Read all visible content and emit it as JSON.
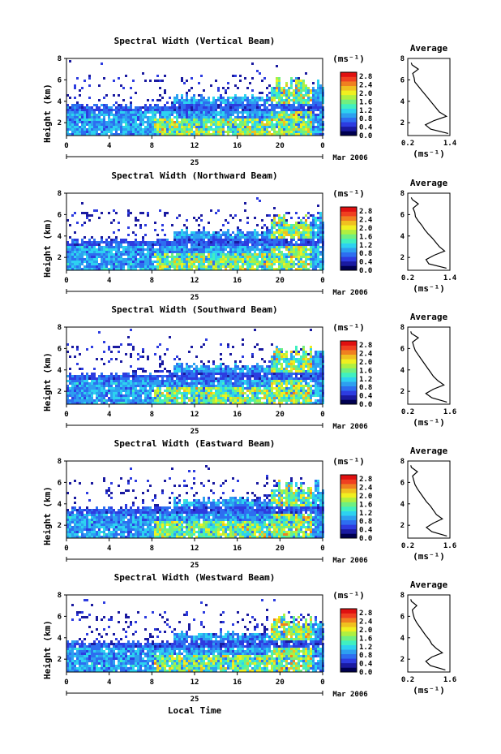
{
  "figure": {
    "xlabel": "Local Time",
    "date_label": "25",
    "month_label": "Mar 2006",
    "colorbar_unit": "(ms⁻¹)",
    "profile_title": "Average",
    "profile_unit": "(ms⁻¹)"
  },
  "colors": {
    "scale": [
      "#000050",
      "#1a1aa0",
      "#2d3ce0",
      "#2d6ef0",
      "#2da0f0",
      "#2dd2f0",
      "#40f0c0",
      "#70f080",
      "#b0f040",
      "#f0f020",
      "#f0c020",
      "#f08020",
      "#f04020",
      "#e01010"
    ],
    "outline": "#000000"
  },
  "chart_data": [
    {
      "type": "heatmap",
      "title": "Spectral Width (Vertical Beam)",
      "ylabel": "Height (km)",
      "x_ticks": [
        "0",
        "4",
        "8",
        "12",
        "16",
        "20",
        "0"
      ],
      "y_ticks": [
        "2",
        "4",
        "6",
        "8"
      ],
      "xlim": [
        0,
        24
      ],
      "ylim": [
        0.8,
        8.0
      ],
      "colorbar_ticks": [
        "0.0",
        "0.4",
        "0.8",
        "1.2",
        "1.6",
        "2.0",
        "2.4",
        "2.8"
      ],
      "colorbar_range": [
        0.0,
        3.0
      ],
      "profile": {
        "type": "line",
        "title": "Average",
        "xlabel": "(ms⁻¹)",
        "x_ticks": [
          "0.2",
          "1.4"
        ],
        "xlim": [
          0.2,
          1.4
        ],
        "y_ticks": [
          "2",
          "4",
          "6",
          "8"
        ],
        "ylim": [
          0.8,
          8.0
        ],
        "height": [
          1.0,
          1.4,
          1.8,
          2.2,
          2.6,
          3.0,
          3.4,
          3.8,
          4.2,
          4.6,
          5.0,
          5.4,
          5.8,
          6.2,
          6.6,
          7.0,
          7.4,
          7.6
        ],
        "width": [
          1.35,
          0.85,
          0.7,
          0.95,
          1.3,
          1.1,
          1.0,
          0.9,
          0.8,
          0.7,
          0.6,
          0.5,
          0.4,
          0.38,
          0.34,
          0.5,
          0.32,
          0.3
        ]
      }
    },
    {
      "type": "heatmap",
      "title": "Spectral Width (Northward Beam)",
      "ylabel": "Height (km)",
      "x_ticks": [
        "0",
        "4",
        "8",
        "12",
        "16",
        "20",
        "0"
      ],
      "y_ticks": [
        "2",
        "4",
        "6",
        "8"
      ],
      "xlim": [
        0,
        24
      ],
      "ylim": [
        0.8,
        8.0
      ],
      "colorbar_ticks": [
        "0.0",
        "0.4",
        "0.8",
        "1.2",
        "1.6",
        "2.0",
        "2.4",
        "2.8"
      ],
      "colorbar_range": [
        0.0,
        3.0
      ],
      "profile": {
        "type": "line",
        "title": "Average",
        "xlabel": "(ms⁻¹)",
        "x_ticks": [
          "0.2",
          "1.4"
        ],
        "xlim": [
          0.2,
          1.4
        ],
        "y_ticks": [
          "2",
          "4",
          "6",
          "8"
        ],
        "ylim": [
          0.8,
          8.0
        ],
        "height": [
          1.0,
          1.4,
          1.8,
          2.2,
          2.6,
          3.0,
          3.4,
          3.8,
          4.2,
          4.6,
          5.0,
          5.4,
          5.8,
          6.2,
          6.6,
          7.0,
          7.4,
          7.6
        ],
        "width": [
          1.3,
          0.8,
          0.72,
          0.95,
          1.25,
          1.1,
          1.0,
          0.9,
          0.78,
          0.68,
          0.6,
          0.5,
          0.42,
          0.4,
          0.35,
          0.5,
          0.33,
          0.3
        ]
      }
    },
    {
      "type": "heatmap",
      "title": "Spectral Width (Southward Beam)",
      "ylabel": "Height (km)",
      "x_ticks": [
        "0",
        "4",
        "8",
        "12",
        "16",
        "20",
        "0"
      ],
      "y_ticks": [
        "2",
        "4",
        "6",
        "8"
      ],
      "xlim": [
        0,
        24
      ],
      "ylim": [
        0.8,
        8.0
      ],
      "colorbar_ticks": [
        "0.0",
        "0.4",
        "0.8",
        "1.2",
        "1.6",
        "2.0",
        "2.4",
        "2.8"
      ],
      "colorbar_range": [
        0.0,
        3.0
      ],
      "profile": {
        "type": "line",
        "title": "Average",
        "xlabel": "(ms⁻¹)",
        "x_ticks": [
          "0.2",
          "1.6"
        ],
        "xlim": [
          0.2,
          1.6
        ],
        "y_ticks": [
          "2",
          "4",
          "6",
          "8"
        ],
        "ylim": [
          0.8,
          8.0
        ],
        "height": [
          1.0,
          1.4,
          1.8,
          2.2,
          2.6,
          3.0,
          3.4,
          3.8,
          4.2,
          4.6,
          5.0,
          5.4,
          5.8,
          6.2,
          6.6,
          7.0,
          7.4,
          7.6
        ],
        "width": [
          1.5,
          1.0,
          0.8,
          1.05,
          1.4,
          1.2,
          1.05,
          0.95,
          0.85,
          0.75,
          0.65,
          0.55,
          0.45,
          0.4,
          0.36,
          0.55,
          0.32,
          0.3
        ]
      }
    },
    {
      "type": "heatmap",
      "title": "Spectral Width (Eastward Beam)",
      "ylabel": "Height (km)",
      "x_ticks": [
        "0",
        "4",
        "8",
        "12",
        "16",
        "20",
        "0"
      ],
      "y_ticks": [
        "2",
        "4",
        "6",
        "8"
      ],
      "xlim": [
        0,
        24
      ],
      "ylim": [
        0.8,
        8.0
      ],
      "colorbar_ticks": [
        "0.0",
        "0.4",
        "0.8",
        "1.2",
        "1.6",
        "2.0",
        "2.4",
        "2.8"
      ],
      "colorbar_range": [
        0.0,
        3.0
      ],
      "profile": {
        "type": "line",
        "title": "Average",
        "xlabel": "(ms⁻¹)",
        "x_ticks": [
          "0.2",
          "1.6"
        ],
        "xlim": [
          0.2,
          1.6
        ],
        "y_ticks": [
          "2",
          "4",
          "6",
          "8"
        ],
        "ylim": [
          0.8,
          8.0
        ],
        "height": [
          1.0,
          1.4,
          1.8,
          2.2,
          2.6,
          3.0,
          3.4,
          3.8,
          4.2,
          4.6,
          5.0,
          5.4,
          5.8,
          6.2,
          6.6,
          7.0,
          7.4,
          7.6
        ],
        "width": [
          1.5,
          1.0,
          0.82,
          1.05,
          1.35,
          1.15,
          1.05,
          0.95,
          0.82,
          0.72,
          0.62,
          0.52,
          0.44,
          0.4,
          0.36,
          0.52,
          0.32,
          0.3
        ]
      }
    },
    {
      "type": "heatmap",
      "title": "Spectral Width (Westward Beam)",
      "ylabel": "Height (km)",
      "x_ticks": [
        "0",
        "4",
        "8",
        "12",
        "16",
        "20",
        "0"
      ],
      "y_ticks": [
        "2",
        "4",
        "6",
        "8"
      ],
      "xlim": [
        0,
        24
      ],
      "ylim": [
        0.8,
        8.0
      ],
      "colorbar_ticks": [
        "0.0",
        "0.4",
        "0.8",
        "1.2",
        "1.6",
        "2.0",
        "2.4",
        "2.8"
      ],
      "colorbar_range": [
        0.0,
        3.0
      ],
      "profile": {
        "type": "line",
        "title": "Average",
        "xlabel": "(ms⁻¹)",
        "x_ticks": [
          "0.2",
          "1.6"
        ],
        "xlim": [
          0.2,
          1.6
        ],
        "y_ticks": [
          "2",
          "4",
          "6",
          "8"
        ],
        "ylim": [
          0.8,
          8.0
        ],
        "height": [
          1.0,
          1.4,
          1.8,
          2.2,
          2.6,
          3.0,
          3.4,
          3.8,
          4.2,
          4.6,
          5.0,
          5.4,
          5.8,
          6.2,
          6.6,
          7.0,
          7.4,
          7.6
        ],
        "width": [
          1.45,
          0.95,
          0.8,
          1.0,
          1.35,
          1.15,
          1.0,
          0.92,
          0.8,
          0.7,
          0.6,
          0.5,
          0.42,
          0.38,
          0.35,
          0.5,
          0.32,
          0.3
        ]
      }
    }
  ]
}
